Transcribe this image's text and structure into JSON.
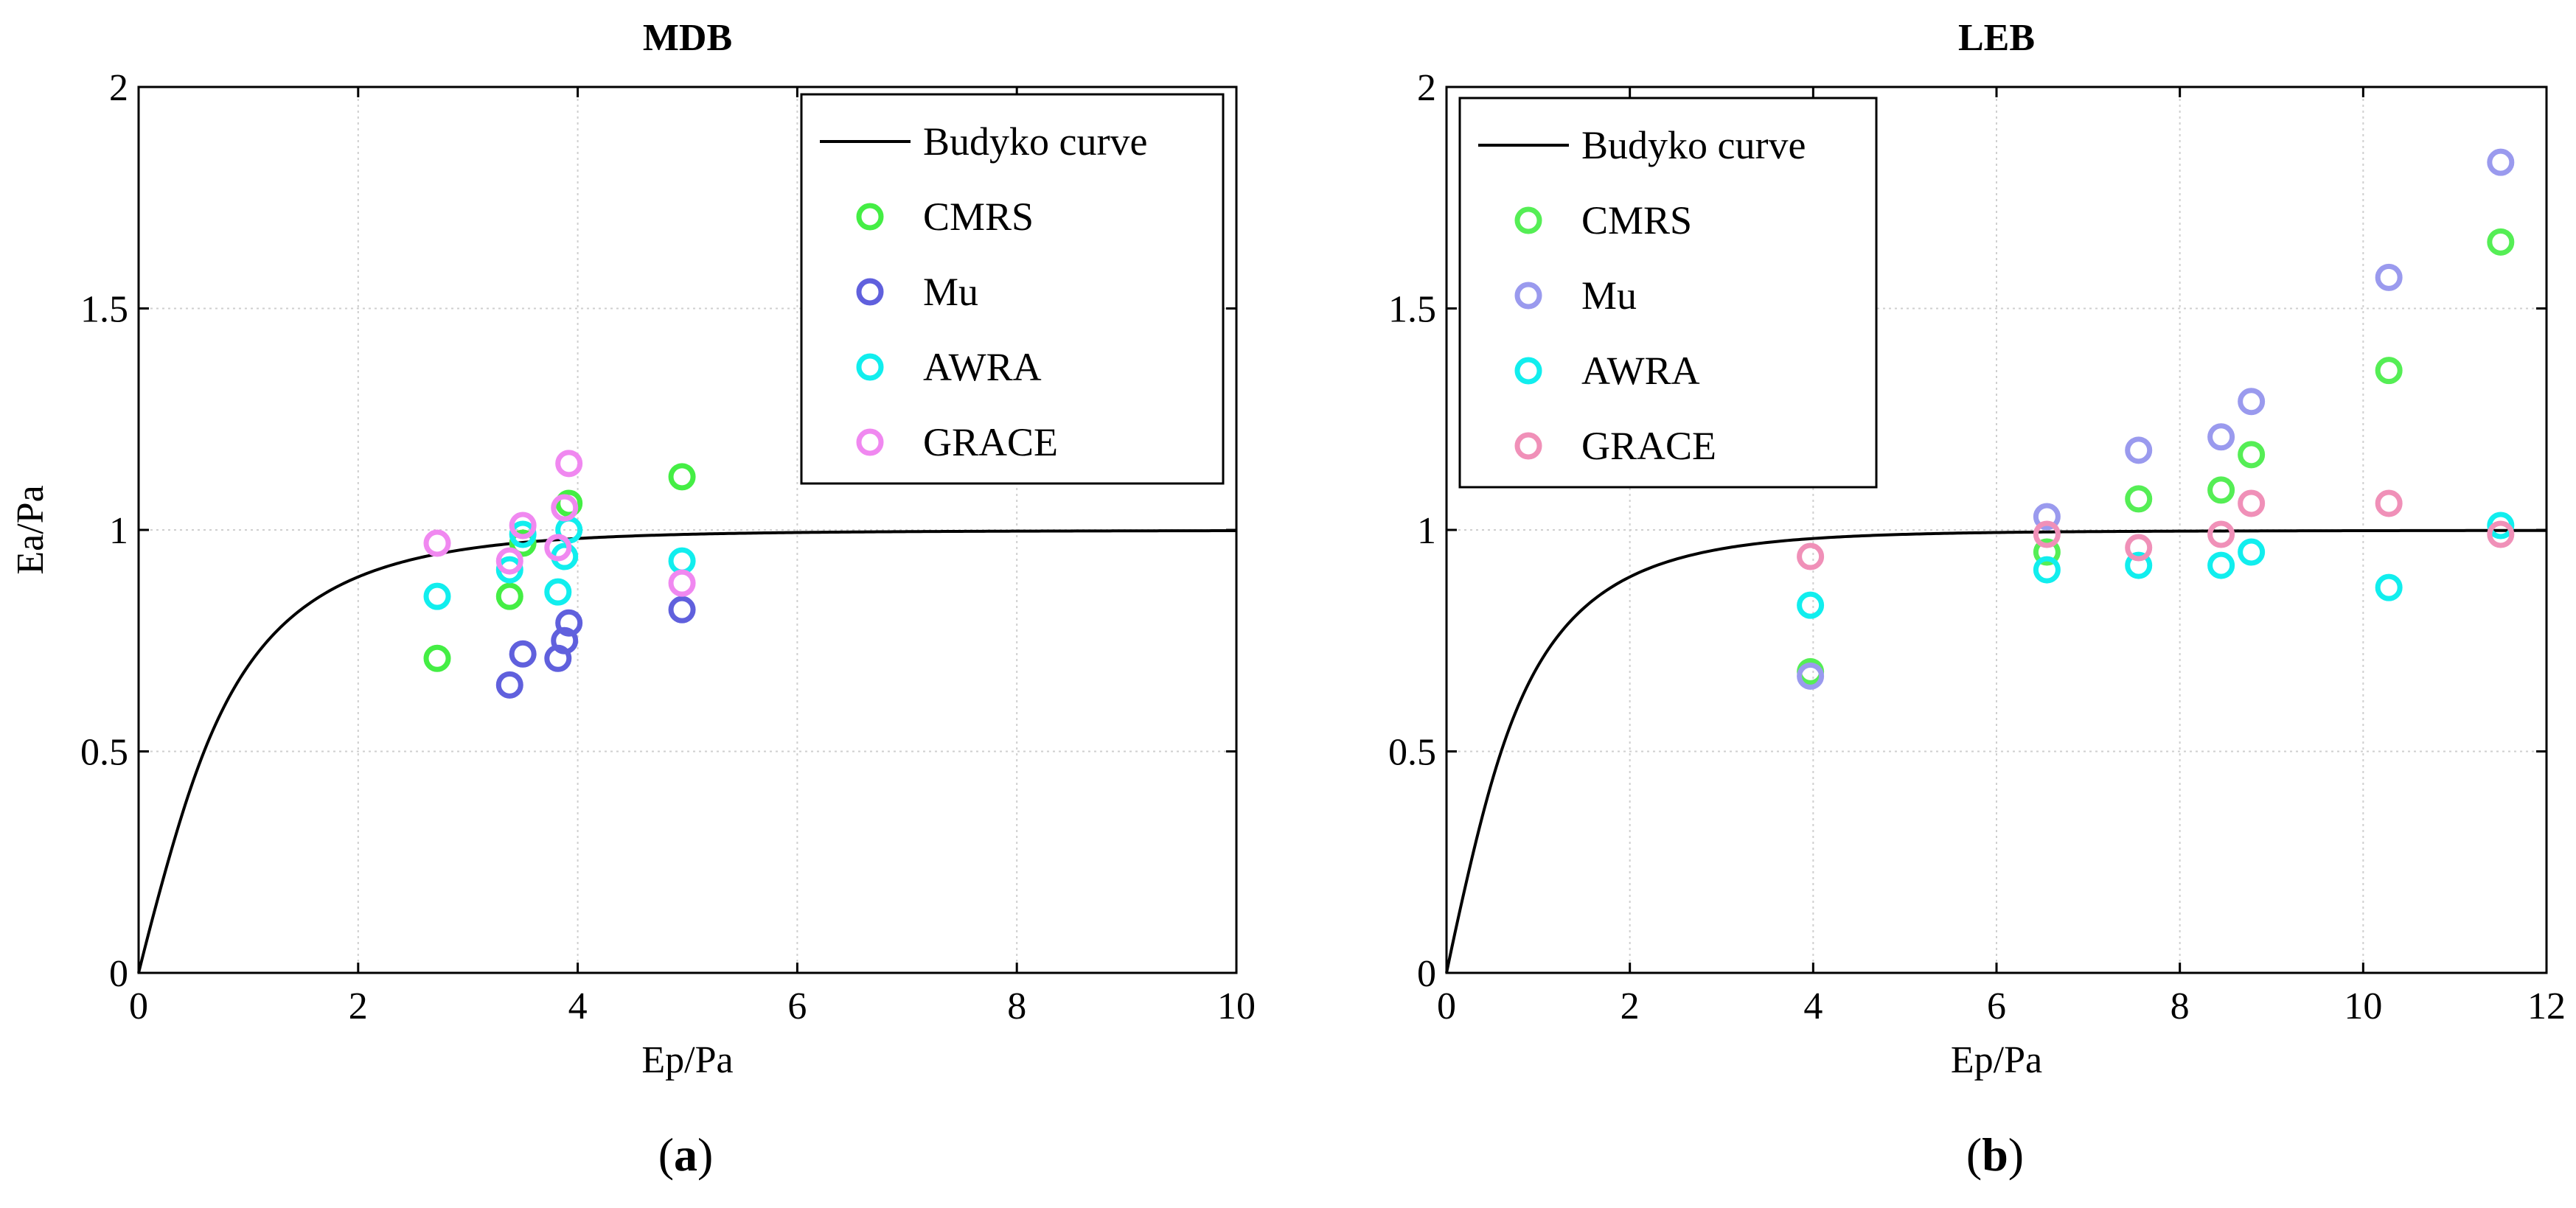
{
  "panel_labels": [
    "a",
    "b"
  ],
  "legend_labels": [
    "Budyko curve",
    "CMRS",
    "Mu",
    "AWRA",
    "GRACE"
  ],
  "chart_data": [
    {
      "type": "scatter",
      "title": "MDB",
      "xlabel": "Ep/Pa",
      "ylabel": "Ea/Pa",
      "xlim": [
        0,
        10
      ],
      "ylim": [
        0,
        2
      ],
      "xticks": [
        0,
        2,
        4,
        6,
        8,
        10
      ],
      "yticks": [
        0,
        0.5,
        1,
        1.5,
        2
      ],
      "ytick_labels": [
        "0",
        "0.5",
        "1",
        "1.5",
        "2"
      ],
      "grid": true,
      "legend_position": "top-right",
      "curve": {
        "name": "Budyko curve",
        "color": "#000000",
        "x_max": 10
      },
      "series": [
        {
          "name": "CMRS",
          "color": "#44ee44",
          "x": [
            2.72,
            3.38,
            3.92,
            4.95,
            3.5
          ],
          "y": [
            0.71,
            0.85,
            1.06,
            1.12,
            0.97
          ]
        },
        {
          "name": "Mu",
          "color": "#6060dd",
          "x": [
            3.38,
            3.5,
            3.82,
            3.88,
            3.92,
            4.95
          ],
          "y": [
            0.65,
            0.72,
            0.71,
            0.75,
            0.79,
            0.82
          ]
        },
        {
          "name": "AWRA",
          "color": "#11eeee",
          "x": [
            2.72,
            3.38,
            3.5,
            3.82,
            3.88,
            3.92,
            4.95
          ],
          "y": [
            0.85,
            0.91,
            0.99,
            0.86,
            0.94,
            1.0,
            0.93
          ]
        },
        {
          "name": "GRACE",
          "color": "#f088f0",
          "x": [
            2.72,
            3.38,
            3.5,
            3.82,
            3.88,
            3.92,
            4.95
          ],
          "y": [
            0.97,
            0.93,
            1.01,
            0.96,
            1.05,
            1.15,
            0.88
          ]
        }
      ]
    },
    {
      "type": "scatter",
      "title": "LEB",
      "xlabel": "Ep/Pa",
      "ylabel": "",
      "xlim": [
        0,
        12
      ],
      "ylim": [
        0,
        2
      ],
      "xticks": [
        0,
        2,
        4,
        6,
        8,
        10,
        12
      ],
      "yticks": [
        0,
        0.5,
        1,
        1.5,
        2
      ],
      "ytick_labels": [
        "0",
        "0.5",
        "1",
        "1.5",
        "2"
      ],
      "grid": true,
      "legend_position": "top-left",
      "curve": {
        "name": "Budyko curve",
        "color": "#000000",
        "x_max": 12
      },
      "series": [
        {
          "name": "CMRS",
          "color": "#55ee55",
          "x": [
            3.97,
            6.55,
            7.55,
            8.45,
            8.78,
            10.28,
            11.5
          ],
          "y": [
            0.68,
            0.95,
            1.07,
            1.09,
            1.17,
            1.36,
            1.65
          ]
        },
        {
          "name": "Mu",
          "color": "#9a9aee",
          "x": [
            3.97,
            6.55,
            7.55,
            8.45,
            8.78,
            10.28,
            11.5
          ],
          "y": [
            0.67,
            1.03,
            1.18,
            1.21,
            1.29,
            1.57,
            1.83
          ]
        },
        {
          "name": "AWRA",
          "color": "#11eeee",
          "x": [
            3.97,
            6.55,
            7.55,
            8.45,
            8.78,
            10.28,
            11.5
          ],
          "y": [
            0.83,
            0.91,
            0.92,
            0.92,
            0.95,
            0.87,
            1.01
          ]
        },
        {
          "name": "GRACE",
          "color": "#f090b8",
          "x": [
            3.97,
            6.55,
            7.55,
            8.45,
            8.78,
            10.28,
            11.5
          ],
          "y": [
            0.94,
            0.99,
            0.96,
            0.99,
            1.06,
            1.06,
            0.99
          ]
        }
      ]
    }
  ]
}
